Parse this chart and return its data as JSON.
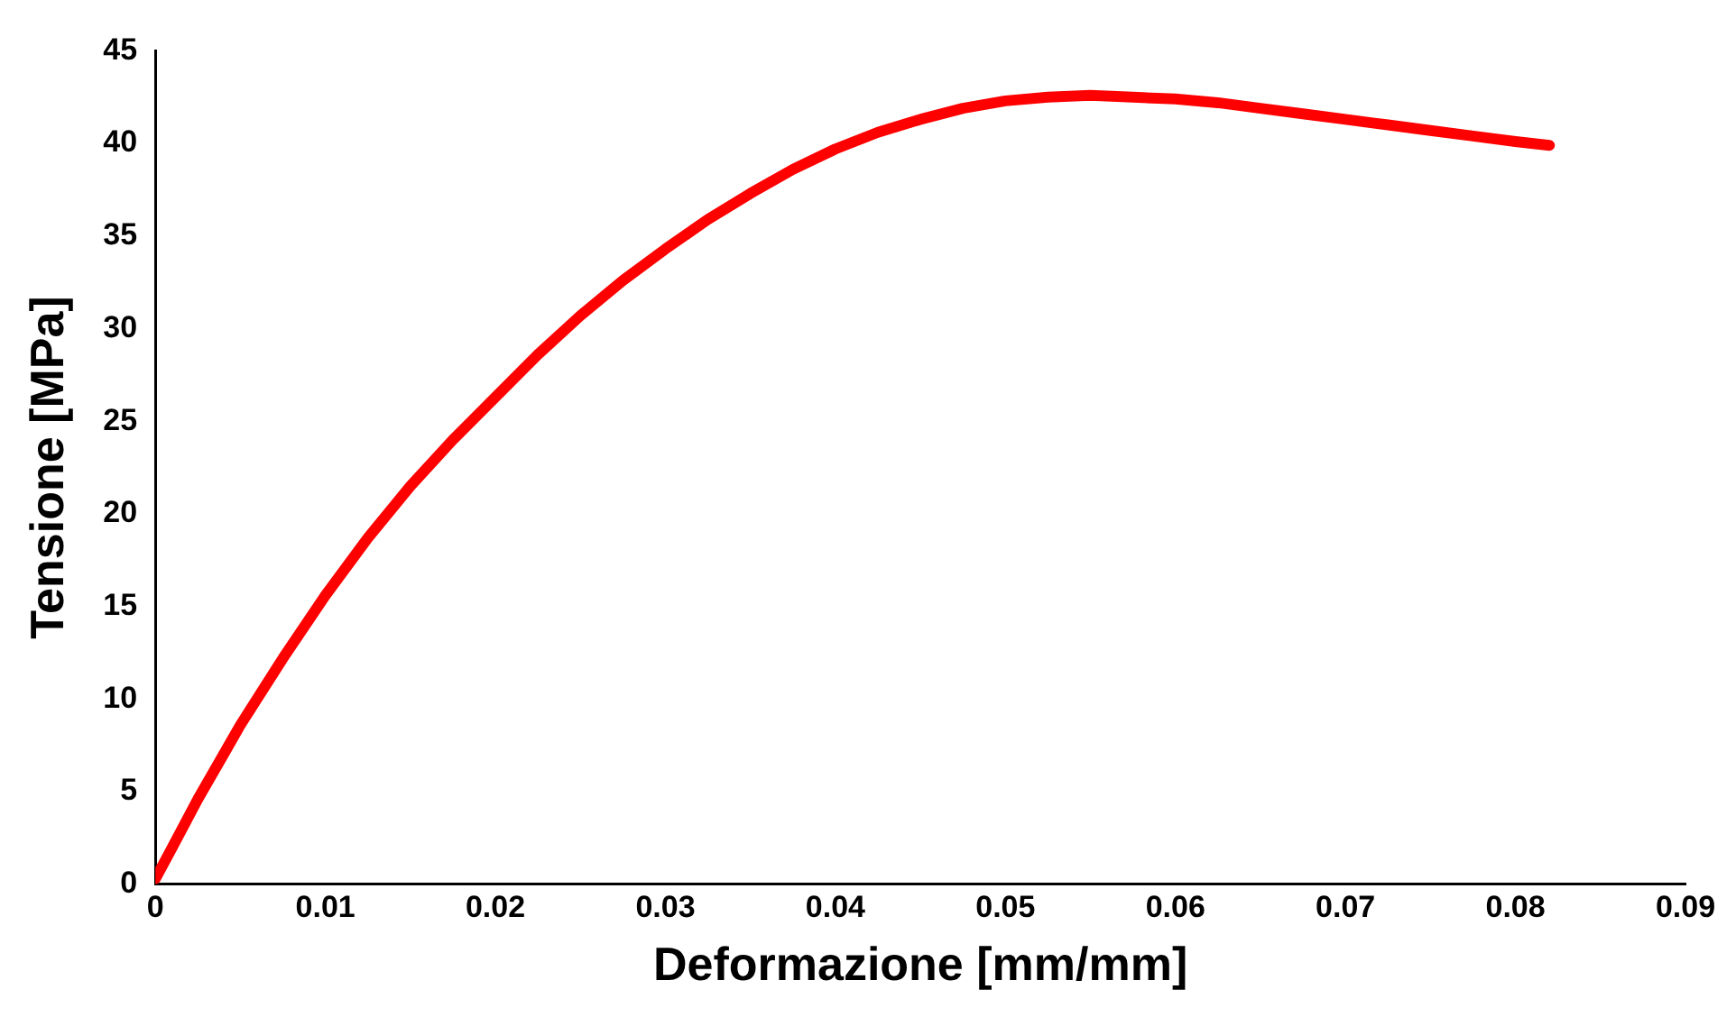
{
  "chart_data": {
    "type": "line",
    "xlabel": "Deformazione [mm/mm]",
    "ylabel": "Tensione [MPa]",
    "xlim": [
      0,
      0.09
    ],
    "xticks": [
      0,
      0.01,
      0.02,
      0.03,
      0.04,
      0.05,
      0.06,
      0.07,
      0.08,
      0.09
    ],
    "ylim": [
      0,
      45
    ],
    "yticks": [
      0,
      5,
      10,
      15,
      20,
      25,
      30,
      35,
      40,
      45
    ],
    "grid": false,
    "legend": false,
    "marker": "none",
    "line_style": "solid",
    "series": [
      {
        "color": "#ff0000",
        "x": [
          0,
          0.001,
          0.0025,
          0.005,
          0.0075,
          0.01,
          0.0125,
          0.015,
          0.0175,
          0.02,
          0.0225,
          0.025,
          0.0275,
          0.03,
          0.0325,
          0.035,
          0.0375,
          0.04,
          0.0425,
          0.045,
          0.0475,
          0.05,
          0.0525,
          0.055,
          0.0575,
          0.06,
          0.0625,
          0.065,
          0.0675,
          0.07,
          0.0725,
          0.075,
          0.0775,
          0.08,
          0.082
        ],
        "values": [
          0.3,
          2.0,
          4.6,
          8.6,
          12.2,
          15.6,
          18.7,
          21.5,
          24.0,
          26.3,
          28.6,
          30.7,
          32.6,
          34.3,
          35.9,
          37.3,
          38.6,
          39.7,
          40.6,
          41.3,
          41.9,
          42.3,
          42.5,
          42.6,
          42.5,
          42.4,
          42.2,
          41.9,
          41.6,
          41.3,
          41.0,
          40.7,
          40.4,
          40.1,
          39.9
        ]
      }
    ]
  }
}
